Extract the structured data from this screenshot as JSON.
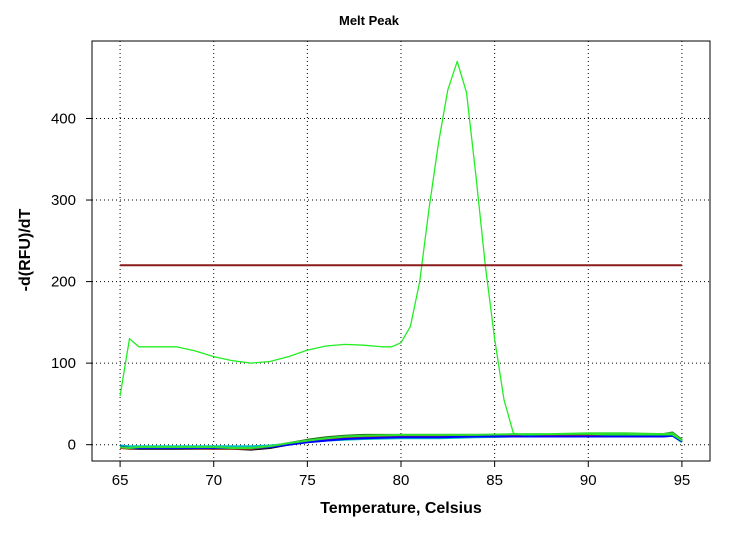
{
  "chart_data": {
    "type": "line",
    "title": "Melt Peak",
    "xlabel": "Temperature, Celsius",
    "ylabel": "-d(RFU)/dT",
    "xlim": [
      63.5,
      96.5
    ],
    "ylim": [
      -20,
      495
    ],
    "xticks": [
      65,
      70,
      75,
      80,
      85,
      90,
      95
    ],
    "yticks": [
      0,
      100,
      200,
      300,
      400
    ],
    "grid": true,
    "threshold": {
      "value": 220,
      "x": [
        65,
        95
      ],
      "color": "#8b1a1a"
    },
    "series": [
      {
        "color": "#22ee22",
        "x": [
          65,
          65.5,
          66,
          67,
          68,
          69,
          70,
          71,
          72,
          73,
          74,
          75,
          76,
          77,
          78,
          79,
          79.5,
          80,
          80.5,
          81,
          81.5,
          82,
          82.5,
          83,
          83.5,
          84,
          84.5,
          85,
          85.5,
          86,
          86.5,
          87,
          88,
          89,
          90,
          91,
          92,
          93,
          94,
          94.5,
          95
        ],
        "y": [
          60,
          130,
          120,
          120,
          120,
          115,
          108,
          103,
          100,
          102,
          108,
          116,
          121,
          123,
          122,
          120,
          120,
          125,
          145,
          200,
          290,
          370,
          435,
          470,
          432,
          330,
          220,
          130,
          55,
          14,
          12,
          12,
          13,
          13,
          13,
          12,
          12,
          12,
          12,
          12,
          5
        ]
      },
      {
        "color": "#000000",
        "x": [
          65,
          65.5,
          66,
          68,
          70,
          71,
          72,
          73,
          74,
          75,
          76,
          77,
          78,
          80,
          82,
          84,
          86,
          88,
          90,
          92,
          94,
          94.5,
          95
        ],
        "y": [
          -2,
          -5,
          -5,
          -5,
          -5,
          -5,
          -6,
          -4,
          0,
          5,
          8,
          10,
          11,
          11,
          11,
          11,
          11,
          11,
          11,
          12,
          12,
          14,
          5
        ]
      },
      {
        "color": "#1a6b1a",
        "x": [
          65,
          65.5,
          66,
          68,
          70,
          71,
          72,
          73,
          74,
          75,
          76,
          77,
          78,
          80,
          82,
          84,
          86,
          88,
          90,
          92,
          94,
          94.5,
          95
        ],
        "y": [
          -3,
          -3,
          -3,
          -3,
          -3,
          -3,
          -3,
          -2,
          2,
          6,
          9,
          11,
          12,
          12,
          12,
          12,
          12,
          12,
          13,
          13,
          13,
          15,
          6
        ]
      },
      {
        "color": "#b33b1a",
        "x": [
          65,
          65.5,
          66,
          68,
          70,
          71,
          72,
          73,
          74,
          75,
          76,
          77,
          78,
          80,
          82,
          84,
          86,
          88,
          90,
          92,
          94,
          94.5,
          95
        ],
        "y": [
          -4,
          -5,
          -4,
          -4,
          -5,
          -5,
          -5,
          -3,
          1,
          4,
          7,
          8,
          9,
          10,
          10,
          10,
          11,
          11,
          11,
          11,
          11,
          12,
          4
        ]
      },
      {
        "color": "#00c0c0",
        "x": [
          65,
          65.5,
          66,
          68,
          70,
          71,
          72,
          73,
          74,
          75,
          76,
          77,
          78,
          80,
          82,
          84,
          86,
          88,
          90,
          92,
          94,
          94.5,
          95
        ],
        "y": [
          -1,
          -2,
          -2,
          -2,
          -2,
          -2,
          -2,
          -1,
          1,
          3,
          5,
          6,
          7,
          8,
          8,
          9,
          10,
          10,
          10,
          10,
          10,
          11,
          3
        ]
      },
      {
        "color": "#0000ff",
        "x": [
          65,
          65.5,
          66,
          68,
          70,
          71,
          72,
          73,
          74,
          75,
          76,
          77,
          78,
          80,
          82,
          84,
          86,
          88,
          90,
          92,
          94,
          94.5,
          95
        ],
        "y": [
          -2,
          -4,
          -4,
          -4,
          -4,
          -4,
          -4,
          -3,
          0,
          3,
          5,
          7,
          8,
          9,
          9,
          10,
          10,
          10,
          10,
          10,
          10,
          11,
          4
        ]
      },
      {
        "color": "#30e030",
        "x": [
          65,
          65.5,
          66,
          68,
          70,
          71,
          72,
          73,
          74,
          75,
          76,
          77,
          78,
          80,
          82,
          84,
          86,
          88,
          90,
          92,
          94,
          94.5,
          95
        ],
        "y": [
          -3,
          -4,
          -3,
          -3,
          -3,
          -4,
          -4,
          -2,
          2,
          5,
          8,
          10,
          11,
          12,
          12,
          12,
          13,
          13,
          14,
          14,
          13,
          14,
          5
        ]
      }
    ]
  }
}
